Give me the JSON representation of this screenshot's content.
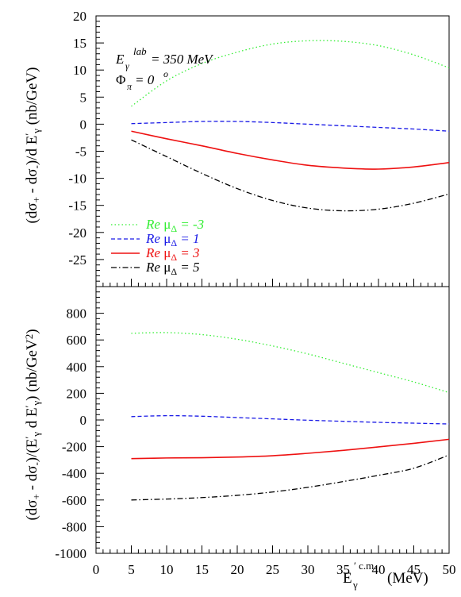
{
  "chart_data": [
    {
      "type": "line",
      "ylabel": "(dσ₊ - dσ₋)/d E′γ (nb/GeV)",
      "xlim": [
        0,
        50
      ],
      "ylim": [
        -30,
        20
      ],
      "yticks": [
        20,
        15,
        10,
        5,
        0,
        -5,
        -10,
        -15,
        -20,
        -25
      ],
      "annotations": [
        "Eγlab = 350 MeV",
        "Φπ = 0o"
      ],
      "x": [
        5,
        10,
        15,
        20,
        25,
        30,
        35,
        40,
        45,
        50
      ],
      "series": [
        {
          "name": "Re μΔ = -3",
          "color": "#33ee33",
          "dash": "dotted",
          "values": [
            3.3,
            8.0,
            11.2,
            13.3,
            14.8,
            15.4,
            15.3,
            14.5,
            12.8,
            10.4
          ]
        },
        {
          "name": "Re μΔ = 1",
          "color": "#1a1ae6",
          "dash": "dashed",
          "values": [
            0.1,
            0.3,
            0.5,
            0.5,
            0.3,
            0.0,
            -0.3,
            -0.6,
            -0.9,
            -1.3
          ]
        },
        {
          "name": "Re μΔ = 3",
          "color": "#ee1111",
          "dash": "solid",
          "values": [
            -1.3,
            -2.7,
            -4.0,
            -5.4,
            -6.6,
            -7.6,
            -8.1,
            -8.3,
            -7.9,
            -7.1
          ]
        },
        {
          "name": "Re μΔ = 5",
          "color": "#000000",
          "dash": "dashdot",
          "values": [
            -2.9,
            -6.0,
            -9.1,
            -11.9,
            -14.1,
            -15.5,
            -16.0,
            -15.7,
            -14.6,
            -12.9
          ]
        }
      ]
    },
    {
      "type": "line",
      "ylabel": "(dσ₊ - dσ₋)/(E′γ d E′γ) (nb/GeV²)",
      "xlabel": "E′γc.m. (MeV)",
      "xlim": [
        0,
        50
      ],
      "ylim": [
        -1000,
        1000
      ],
      "xticks": [
        0,
        5,
        10,
        15,
        20,
        25,
        30,
        35,
        40,
        45,
        50
      ],
      "yticks": [
        800,
        600,
        400,
        200,
        0,
        -200,
        -400,
        -600,
        -800,
        -1000
      ],
      "x": [
        5,
        10,
        15,
        20,
        25,
        30,
        35,
        40,
        45,
        50
      ],
      "series": [
        {
          "name": "Re μΔ = -3",
          "color": "#33ee33",
          "dash": "dotted",
          "values": [
            650,
            655,
            640,
            605,
            555,
            495,
            425,
            355,
            285,
            205
          ]
        },
        {
          "name": "Re μΔ = 1",
          "color": "#1a1ae6",
          "dash": "dashed",
          "values": [
            25,
            32,
            28,
            18,
            8,
            -2,
            -10,
            -18,
            -24,
            -30
          ]
        },
        {
          "name": "Re μΔ = 3",
          "color": "#ee1111",
          "dash": "solid",
          "values": [
            -290,
            -285,
            -283,
            -278,
            -268,
            -250,
            -228,
            -202,
            -175,
            -145
          ]
        },
        {
          "name": "Re μΔ = 5",
          "color": "#000000",
          "dash": "dashdot",
          "values": [
            -600,
            -593,
            -582,
            -565,
            -540,
            -505,
            -462,
            -415,
            -362,
            -262
          ]
        }
      ]
    }
  ]
}
